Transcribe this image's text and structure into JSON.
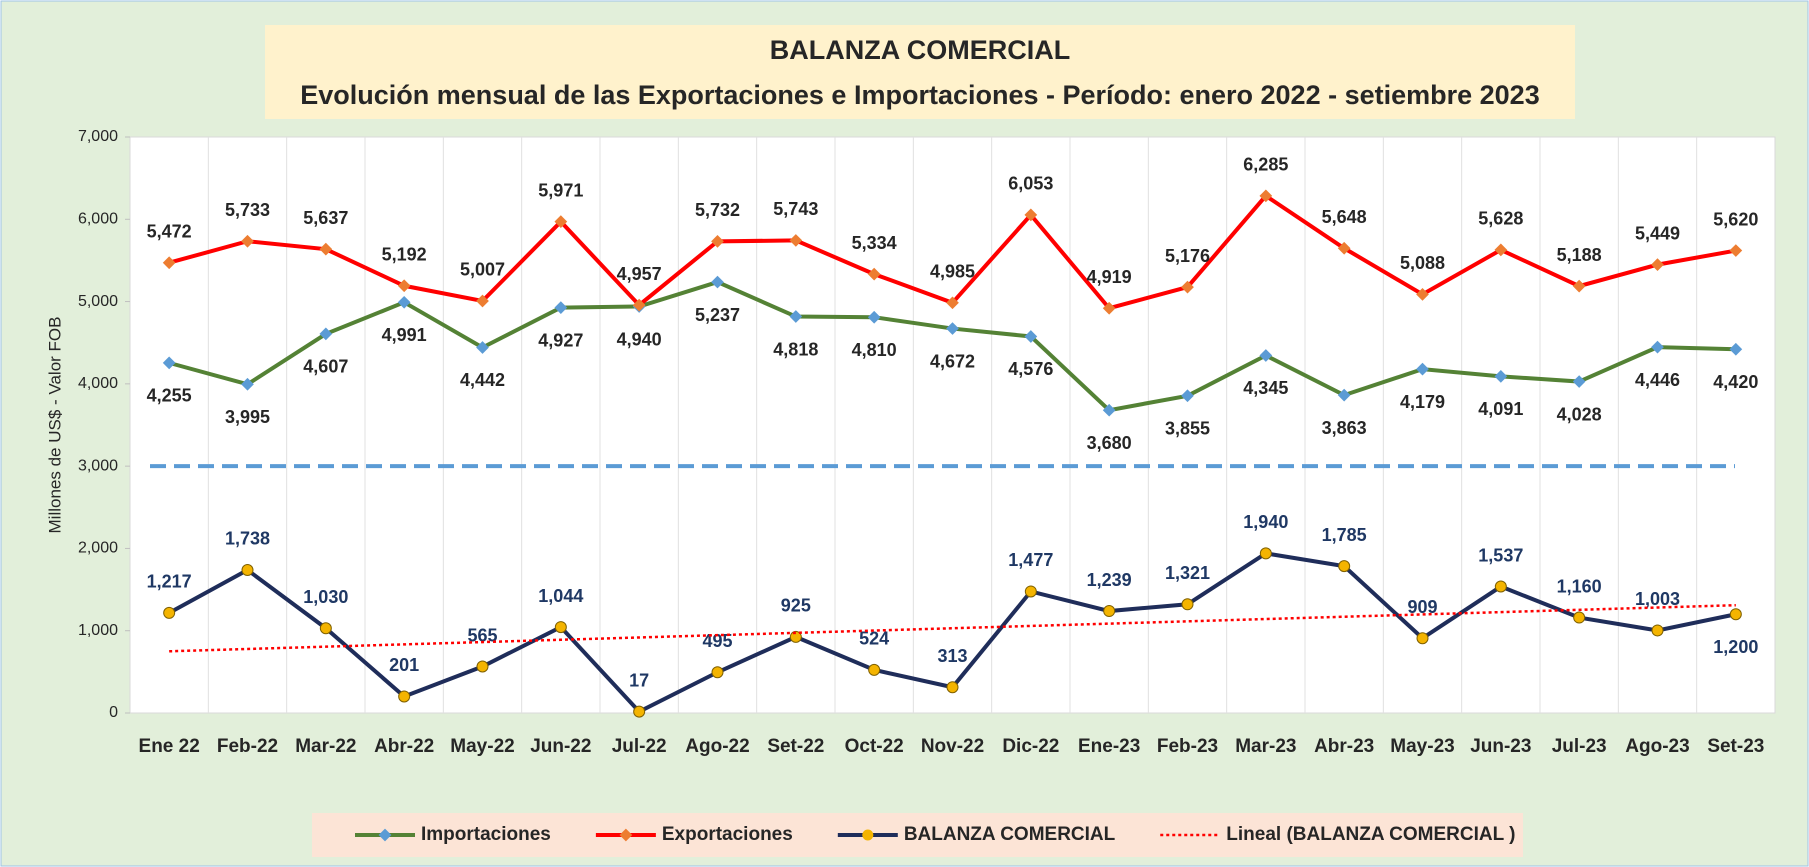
{
  "chart_data": {
    "type": "line",
    "title": "BALANZA COMERCIAL",
    "subtitle": "Evolución mensual de las Exportaciones e Importaciones - Período: enero 2022 - setiembre 2023",
    "y_axis_label": "Millones de US$ - Valor FOB",
    "categories": [
      "Ene 22",
      "Feb-22",
      "Mar-22",
      "Abr-22",
      "May-22",
      "Jun-22",
      "Jul-22",
      "Ago-22",
      "Set-22",
      "Oct-22",
      "Nov-22",
      "Dic-22",
      "Ene-23",
      "Feb-23",
      "Mar-23",
      "Abr-23",
      "May-23",
      "Jun-23",
      "Jul-23",
      "Ago-23",
      "Set-23"
    ],
    "series": [
      {
        "name": "Importaciones",
        "color": "#548235",
        "marker_color": "#5b9bd5",
        "label_position": "below",
        "values": [
          4255,
          3995,
          4607,
          4991,
          4442,
          4927,
          4940,
          5237,
          4818,
          4810,
          4672,
          4576,
          3680,
          3855,
          4345,
          3863,
          4179,
          4091,
          4028,
          4446,
          4420
        ],
        "value_labels": [
          "4,255",
          "3,995",
          "4,607",
          "4,991",
          "4,442",
          "4,927",
          "4,940",
          "5,237",
          "4,818",
          "4,810",
          "4,672",
          "4,576",
          "3,680",
          "3,855",
          "4,345",
          "3,863",
          "4,179",
          "4,091",
          "4,028",
          "4,446",
          "4,420"
        ]
      },
      {
        "name": "Exportaciones",
        "color": "#ff0000",
        "marker_color": "#ed7d31",
        "label_position": "above",
        "values": [
          5472,
          5733,
          5637,
          5192,
          5007,
          5971,
          4957,
          5732,
          5743,
          5334,
          4985,
          6053,
          4919,
          5176,
          6285,
          5648,
          5088,
          5628,
          5188,
          5449,
          5620
        ],
        "value_labels": [
          "5,472",
          "5,733",
          "5,637",
          "5,192",
          "5,007",
          "5,971",
          "4,957",
          "5,732",
          "5,743",
          "5,334",
          "4,985",
          "6,053",
          "4,919",
          "5,176",
          "6,285",
          "5,648",
          "5,088",
          "5,628",
          "5,188",
          "5,449",
          "5,620"
        ]
      },
      {
        "name": "BALANZA COMERCIAL",
        "color": "#1f2d5a",
        "marker_color": "#f4b400",
        "label_position": "above",
        "values": [
          1217,
          1738,
          1030,
          201,
          565,
          1044,
          17,
          495,
          925,
          524,
          313,
          1477,
          1239,
          1321,
          1940,
          1785,
          909,
          1537,
          1160,
          1003,
          1200
        ],
        "value_labels": [
          "1,217",
          "1,738",
          "1,030",
          "201",
          "565",
          "1,044",
          "17",
          "495",
          "925",
          "524",
          "313",
          "1,477",
          "1,239",
          "1,321",
          "1,940",
          "1,785",
          "909",
          "1,537",
          "1,160",
          "1,003",
          "1,200"
        ]
      },
      {
        "name": "Lineal (BALANZA COMERCIAL )",
        "color": "#ff0000",
        "style": "dotted",
        "values": [
          750,
          778,
          806,
          834,
          862,
          890,
          918,
          946,
          974,
          1002,
          1030,
          1058,
          1086,
          1114,
          1142,
          1170,
          1198,
          1226,
          1254,
          1282,
          1310
        ]
      }
    ],
    "reference_line": {
      "value": 3000,
      "color": "#5b9bd5"
    },
    "ylim": [
      0,
      7000
    ],
    "yticks": [
      0,
      {
        "value": 1000,
        "label": "1,000"
      },
      {
        "value": 2000,
        "label": "2,000"
      },
      {
        "value": 3000,
        "label": "3,000"
      },
      {
        "value": 4000,
        "label": "4,000"
      },
      {
        "value": 5000,
        "label": "5,000"
      },
      {
        "value": 6000,
        "label": "6,000"
      },
      {
        "value": 7000,
        "label": "7,000"
      }
    ],
    "grid": "x",
    "legend": "bottom"
  }
}
